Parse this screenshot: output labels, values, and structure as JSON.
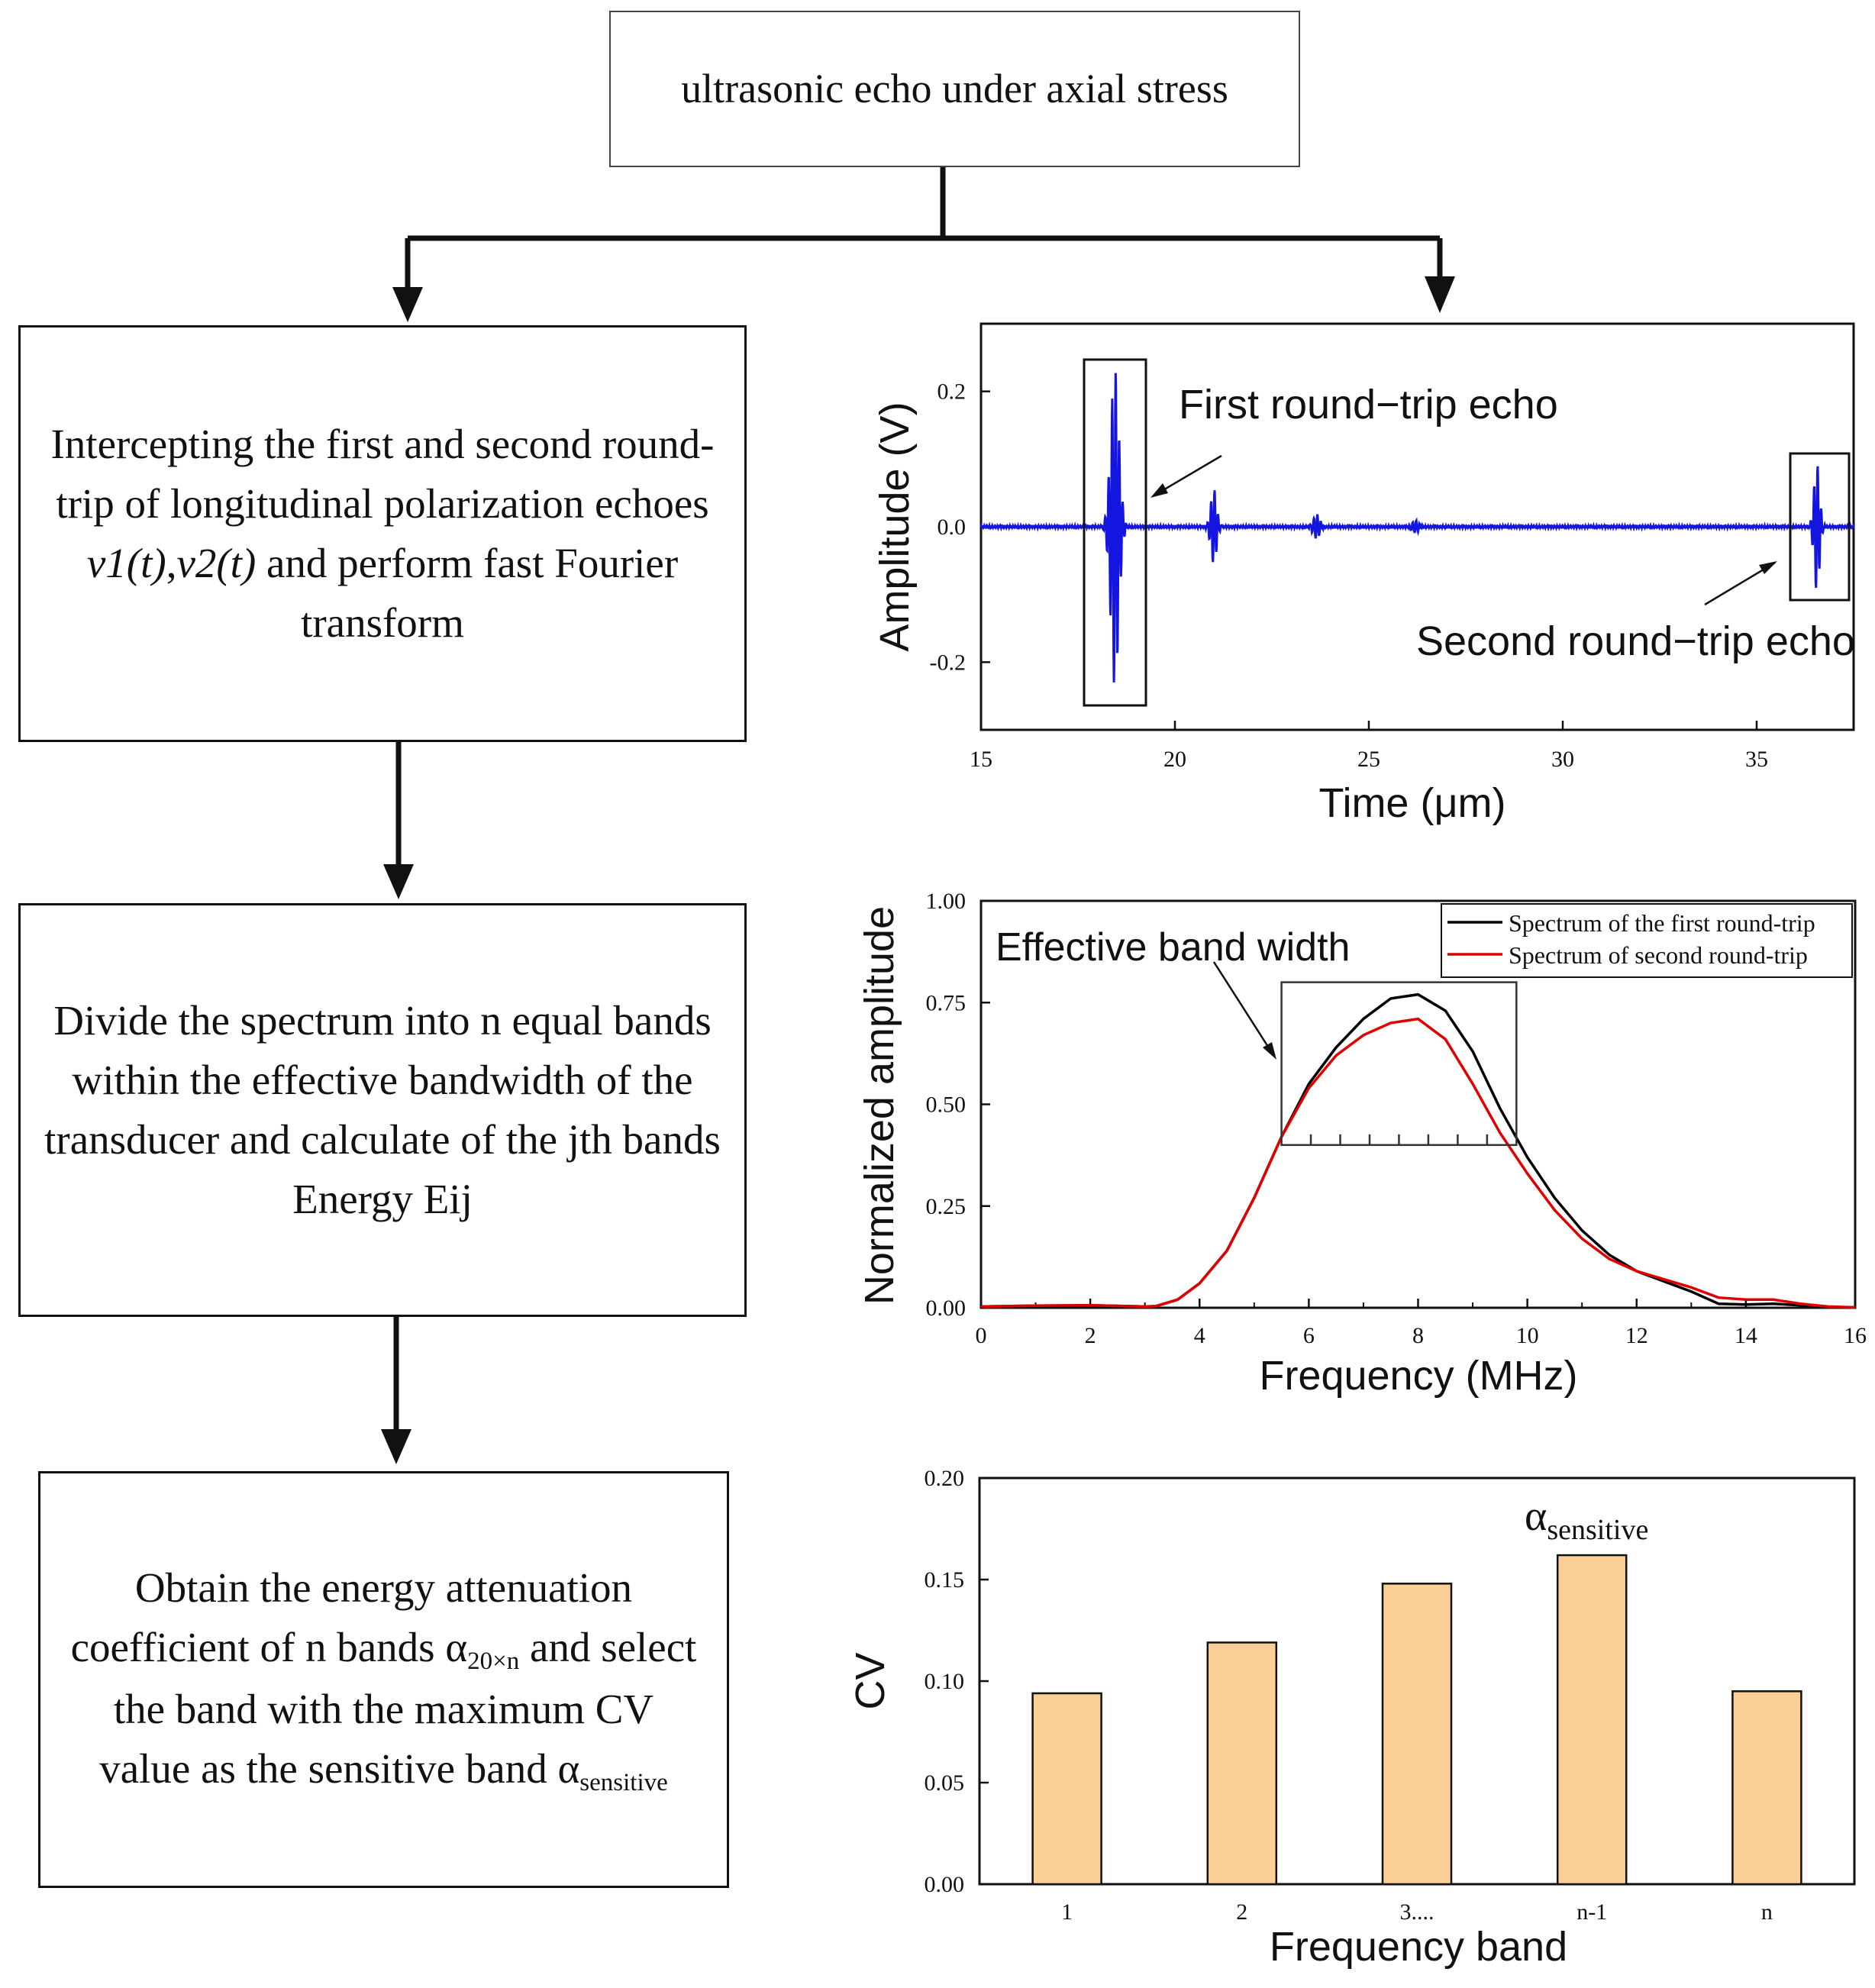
{
  "flowchart": {
    "top_box": "ultrasonic echo under axial stress",
    "step1": {
      "text_a": "Intercepting  the  first and second round-trip  of longitudinal polarization echoes ",
      "v1": "v1(t)",
      "comma": ",",
      "v2": "v2(t)",
      "text_b": " and perform fast Fourier transform"
    },
    "step2": "Divide the spectrum into n equal bands within the effective bandwidth of the transducer and calculate  of the jth bands Energy Eij",
    "step3": {
      "text_a": "Obtain the energy attenuation coefficient of n bands α",
      "sub_a": "20×n",
      "text_b": " and select the band with the maximum CV value as the sensitive band α",
      "sub_b": "sensitive"
    }
  },
  "chart_data": [
    {
      "type": "line",
      "xlabel": "Time (μm)",
      "ylabel": "Amplitude (V)",
      "xlim": [
        15,
        37.5
      ],
      "ylim": [
        -0.3,
        0.3
      ],
      "xticks": [
        "15",
        "20",
        "25",
        "30",
        "35"
      ],
      "yticks": [
        "0.2",
        "0.0",
        "-0.2"
      ],
      "series": [
        {
          "name": "echo",
          "color": "#1515e0",
          "packets": [
            {
              "center": 18.45,
              "amplitude": 0.235,
              "width": 0.22
            },
            {
              "center": 21.0,
              "amplitude": 0.055,
              "width": 0.16
            },
            {
              "center": 23.65,
              "amplitude": 0.018,
              "width": 0.18
            },
            {
              "center": 26.2,
              "amplitude": 0.009,
              "width": 0.18
            },
            {
              "center": 36.55,
              "amplitude": 0.095,
              "width": 0.15
            }
          ]
        }
      ],
      "annotations": [
        "First round−trip echo",
        "Second round−trip echo"
      ]
    },
    {
      "type": "line",
      "xlabel": "Frequency (MHz)",
      "ylabel": "Normalized amplitude",
      "xlim": [
        0,
        16
      ],
      "ylim": [
        0,
        1.0
      ],
      "xticks": [
        "0",
        "2",
        "4",
        "6",
        "8",
        "10",
        "12",
        "14",
        "16"
      ],
      "yticks": [
        "0.00",
        "0.25",
        "0.50",
        "0.75",
        "1.00"
      ],
      "series": [
        {
          "name": "Spectrum of the first round-trip",
          "color": "#000000",
          "x": [
            0,
            1,
            2,
            3,
            3.2,
            3.6,
            4,
            4.5,
            5,
            5.5,
            6,
            6.5,
            7,
            7.5,
            8,
            8.5,
            9,
            9.5,
            10,
            10.5,
            11,
            11.5,
            12,
            12.5,
            13,
            13.5,
            14,
            14.5,
            15,
            15.5,
            16
          ],
          "values": [
            0.003,
            0.005,
            0.006,
            0.003,
            0.004,
            0.02,
            0.06,
            0.14,
            0.27,
            0.42,
            0.55,
            0.64,
            0.71,
            0.76,
            0.77,
            0.73,
            0.63,
            0.49,
            0.37,
            0.27,
            0.19,
            0.13,
            0.09,
            0.065,
            0.04,
            0.01,
            0.008,
            0.01,
            0.006,
            0.002,
            0.001
          ]
        },
        {
          "name": "Spectrum of second round-trip",
          "color": "#e00000",
          "x": [
            0,
            1,
            2,
            3,
            3.2,
            3.6,
            4,
            4.5,
            5,
            5.5,
            6,
            6.5,
            7,
            7.5,
            8,
            8.5,
            9,
            9.5,
            10,
            10.5,
            11,
            11.5,
            12,
            12.5,
            13,
            13.5,
            14,
            14.5,
            15,
            15.5,
            16
          ],
          "values": [
            0.003,
            0.005,
            0.006,
            0.003,
            0.004,
            0.02,
            0.06,
            0.14,
            0.27,
            0.42,
            0.54,
            0.62,
            0.67,
            0.7,
            0.71,
            0.66,
            0.55,
            0.43,
            0.33,
            0.24,
            0.17,
            0.12,
            0.09,
            0.07,
            0.05,
            0.025,
            0.02,
            0.02,
            0.01,
            0.003,
            0.001
          ]
        }
      ],
      "annotations": [
        "Effective band width"
      ],
      "effective_band": [
        5.5,
        9.8
      ],
      "effective_band_level": 0.4,
      "effective_band_top": 0.8,
      "band_divisions": 8
    },
    {
      "type": "bar",
      "xlabel": "Frequency band",
      "ylabel": "CV",
      "ylim": [
        0,
        0.2
      ],
      "yticks": [
        "0.00",
        "0.05",
        "0.10",
        "0.15",
        "0.20"
      ],
      "categories": [
        "1",
        "2",
        "3....",
        "n-1",
        "n"
      ],
      "values": [
        0.094,
        0.119,
        0.148,
        0.162,
        0.095
      ],
      "bar_color": "#fccf96",
      "annotation": {
        "text": "α",
        "sub": "sensitive"
      }
    }
  ]
}
